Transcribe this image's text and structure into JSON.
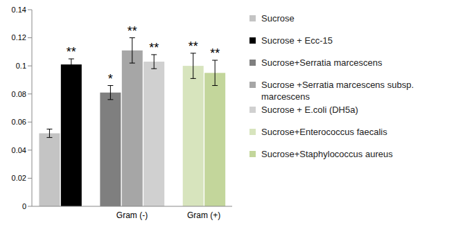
{
  "chart_data": {
    "type": "bar",
    "categories": [
      null,
      "Gram (-)",
      "Gram (+)"
    ],
    "ylim": [
      0,
      0.14
    ],
    "yticks": [
      0,
      0.02,
      0.04,
      0.06,
      0.08,
      0.1,
      0.12,
      0.14
    ],
    "grid": false,
    "legend": "right",
    "series": [
      {
        "name": "Sucrose",
        "color": "#c4c4c4",
        "values": [
          0.052,
          null,
          null
        ],
        "errors": [
          0.003,
          null,
          null
        ],
        "annotations": [
          null,
          null,
          null
        ]
      },
      {
        "name": "Sucrose + Ecc-15",
        "color": "#000000",
        "values": [
          0.101,
          null,
          null
        ],
        "errors": [
          0.004,
          null,
          null
        ],
        "annotations": [
          "**",
          null,
          null
        ]
      },
      {
        "name": "Sucrose+Serratia marcescens",
        "color": "#7f7f7f",
        "values": [
          null,
          0.081,
          null
        ],
        "errors": [
          null,
          0.005,
          null
        ],
        "annotations": [
          null,
          "*",
          null
        ]
      },
      {
        "name": "Sucrose +Serratia marcescens subsp. marcescens",
        "color": "#a6a6a6",
        "values": [
          null,
          0.111,
          null
        ],
        "errors": [
          null,
          0.009,
          null
        ],
        "annotations": [
          null,
          "**",
          null
        ]
      },
      {
        "name": "Sucrose + E.coli (DH5a)",
        "color": "#d0d0d0",
        "values": [
          null,
          0.103,
          null
        ],
        "errors": [
          null,
          0.005,
          null
        ],
        "annotations": [
          null,
          "**",
          null
        ]
      },
      {
        "name": "Sucrose+Enterococcus faecalis",
        "color": "#d7e4bd",
        "values": [
          null,
          null,
          0.1
        ],
        "errors": [
          null,
          null,
          0.009
        ],
        "annotations": [
          null,
          null,
          "**"
        ]
      },
      {
        "name": "Sucrose+Staphylococcus aureus",
        "color": "#c3d69b",
        "values": [
          null,
          null,
          0.095
        ],
        "errors": [
          null,
          null,
          0.009
        ],
        "annotations": [
          null,
          null,
          "**"
        ]
      }
    ]
  }
}
